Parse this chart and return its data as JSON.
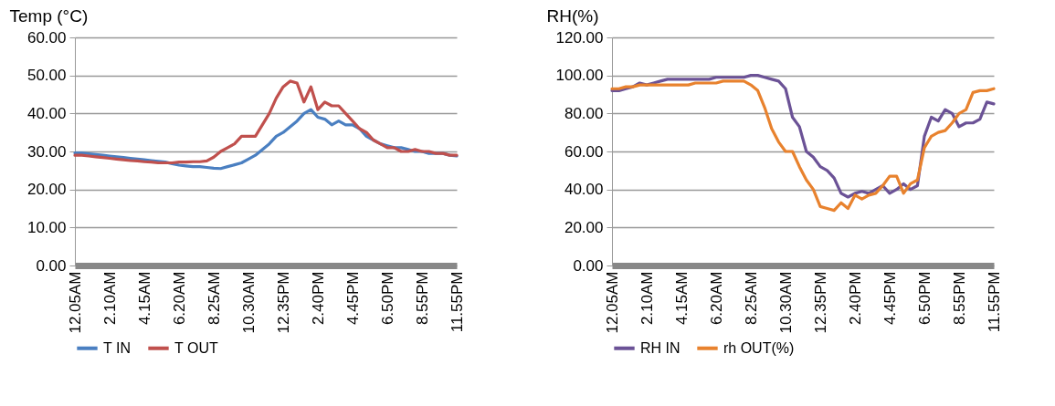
{
  "chart_data": [
    {
      "type": "line",
      "ylabel": "Temp (°C)",
      "legend": "bottom",
      "grid": "y",
      "marker": "none",
      "line_style": "solid",
      "categories": [
        "12.05AM",
        null,
        null,
        null,
        null,
        "2.10AM",
        null,
        null,
        null,
        null,
        "4.15AM",
        null,
        null,
        null,
        null,
        "6.20AM",
        null,
        null,
        null,
        null,
        "8.25AM",
        null,
        null,
        null,
        null,
        "10.30AM",
        null,
        null,
        null,
        null,
        "12.35PM",
        null,
        null,
        null,
        null,
        "2.40PM",
        null,
        null,
        null,
        null,
        "4.45PM",
        null,
        null,
        null,
        null,
        "6.50PM",
        null,
        null,
        null,
        null,
        "8.55PM",
        null,
        null,
        null,
        null,
        "11.55PM"
      ],
      "ylim": [
        0,
        60
      ],
      "yticks": [
        {
          "value": 0,
          "label": "0.00"
        },
        {
          "value": 10,
          "label": "10.00"
        },
        {
          "value": 20,
          "label": "20.00"
        },
        {
          "value": 30,
          "label": "30.00"
        },
        {
          "value": 40,
          "label": "40.00"
        },
        {
          "value": 50,
          "label": "50.00"
        },
        {
          "value": 60,
          "label": "60.00"
        }
      ],
      "series": [
        {
          "name": "T IN",
          "color": "#4a7fc1",
          "values": [
            29.6,
            29.6,
            29.4,
            29.2,
            29,
            28.8,
            28.6,
            28.4,
            28.2,
            28,
            27.8,
            27.6,
            27.4,
            27.2,
            26.8,
            26.4,
            26.2,
            26,
            26,
            25.8,
            25.6,
            25.5,
            26,
            26.5,
            27,
            28,
            29,
            30.5,
            32,
            34,
            35,
            36.5,
            38,
            40,
            41,
            39,
            38.5,
            37,
            38,
            37,
            37,
            36,
            34,
            33,
            32,
            31.5,
            31,
            31,
            30.5,
            30,
            30,
            29.5,
            29.5,
            29.5,
            29,
            28.8
          ]
        },
        {
          "name": "T OUT",
          "color": "#c0504d",
          "values": [
            29,
            29,
            28.8,
            28.6,
            28.4,
            28.2,
            28,
            27.8,
            27.6,
            27.5,
            27.3,
            27.2,
            27,
            27,
            27,
            27.2,
            27.2,
            27.3,
            27.3,
            27.5,
            28.5,
            30,
            31,
            32,
            34,
            34,
            34,
            37,
            40,
            44,
            47,
            48.5,
            48,
            43,
            47,
            41,
            43,
            42,
            42,
            40,
            38,
            36,
            35,
            33,
            32,
            31,
            31,
            30,
            30,
            30.5,
            30,
            30,
            29.5,
            29.5,
            29,
            29
          ]
        }
      ]
    },
    {
      "type": "line",
      "ylabel": "RH(%)",
      "legend": "bottom",
      "grid": "y",
      "marker": "none",
      "line_style": "solid",
      "categories": [
        "12.05AM",
        null,
        null,
        null,
        null,
        "2.10AM",
        null,
        null,
        null,
        null,
        "4.15AM",
        null,
        null,
        null,
        null,
        "6.20AM",
        null,
        null,
        null,
        null,
        "8.25AM",
        null,
        null,
        null,
        null,
        "10.30AM",
        null,
        null,
        null,
        null,
        "12.35PM",
        null,
        null,
        null,
        null,
        "2.40PM",
        null,
        null,
        null,
        null,
        "4.45PM",
        null,
        null,
        null,
        null,
        "6.50PM",
        null,
        null,
        null,
        null,
        "8.55PM",
        null,
        null,
        null,
        null,
        "11.55PM"
      ],
      "ylim": [
        0,
        120
      ],
      "yticks": [
        {
          "value": 0,
          "label": "0.00"
        },
        {
          "value": 20,
          "label": "20.00"
        },
        {
          "value": 40,
          "label": "40.00"
        },
        {
          "value": 60,
          "label": "60.00"
        },
        {
          "value": 80,
          "label": "80.00"
        },
        {
          "value": 100,
          "label": "100.00"
        },
        {
          "value": 120,
          "label": "120.00"
        }
      ],
      "series": [
        {
          "name": "RH IN",
          "color": "#6b5296",
          "values": [
            92,
            92,
            93,
            94,
            96,
            95,
            96,
            97,
            98,
            98,
            98,
            98,
            98,
            98,
            98,
            99,
            99,
            99,
            99,
            99,
            100,
            100,
            99,
            98,
            97,
            93,
            78,
            73,
            60,
            57,
            52,
            50,
            46,
            38,
            36,
            38,
            39,
            38,
            40,
            42,
            38,
            40,
            43,
            40,
            42,
            68,
            78,
            76,
            82,
            80,
            73,
            75,
            75,
            77,
            86,
            85
          ]
        },
        {
          "name": "rh OUT(%)",
          "color": "#e8822e",
          "values": [
            93,
            93,
            94,
            94,
            95,
            95,
            95,
            95,
            95,
            95,
            95,
            95,
            96,
            96,
            96,
            96,
            97,
            97,
            97,
            97,
            95,
            92,
            83,
            72,
            65,
            60,
            60,
            52,
            45,
            40,
            31,
            30,
            29,
            33,
            30,
            37,
            35,
            37,
            38,
            42,
            47,
            47,
            38,
            43,
            45,
            62,
            68,
            70,
            71,
            75,
            80,
            82,
            91,
            92,
            92,
            93
          ]
        }
      ]
    }
  ]
}
